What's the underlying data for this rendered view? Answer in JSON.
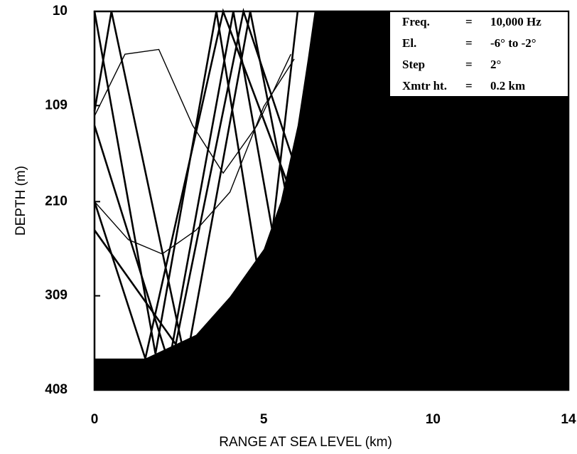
{
  "chart_data": {
    "type": "line",
    "x_label": "RANGE AT SEA LEVEL (km)",
    "y_label": "DEPTH (m)",
    "xlim": [
      0,
      14
    ],
    "xticks": [
      0,
      5,
      10,
      14
    ],
    "ylim": [
      10,
      408
    ],
    "yticks": [
      10,
      109,
      210,
      309,
      408
    ],
    "y_inverted": true,
    "color": "#000000",
    "shadow_zone": {
      "x": [
        0,
        1.5,
        3,
        4,
        5,
        5.5,
        6,
        6.3,
        6.5
      ],
      "y": [
        375,
        375,
        350,
        310,
        260,
        210,
        130,
        60,
        10
      ]
    },
    "rays": [
      {
        "x": [
          0,
          0.5,
          2.7,
          4.6,
          6.2
        ],
        "y": [
          115,
          10,
          380,
          10,
          300
        ]
      },
      {
        "x": [
          0,
          1.5,
          3.8,
          5.8
        ],
        "y": [
          210,
          375,
          10,
          200
        ]
      },
      {
        "x": [
          0,
          2.2,
          4.1,
          5.4
        ],
        "y": [
          130,
          380,
          10,
          270
        ]
      },
      {
        "x": [
          0,
          1.8,
          3.6,
          5.0,
          6.0
        ],
        "y": [
          10,
          370,
          10,
          320,
          10
        ]
      },
      {
        "x": [
          0,
          2.4,
          4.4,
          5.9
        ],
        "y": [
          240,
          360,
          10,
          170
        ]
      },
      {
        "x": [
          0,
          0.9,
          1.9,
          2.9,
          3.8,
          4.8,
          5.8
        ],
        "y": [
          120,
          55,
          50,
          130,
          180,
          130,
          55
        ],
        "thin": true
      },
      {
        "x": [
          0,
          1,
          2,
          3,
          4,
          5,
          5.9
        ],
        "y": [
          210,
          250,
          265,
          240,
          200,
          110,
          60
        ],
        "thin": true
      }
    ],
    "annotation": {
      "rows": [
        [
          "Freq.",
          "=",
          "10,000 Hz"
        ],
        [
          "El.",
          "=",
          "-6° to -2°"
        ],
        [
          "Step",
          "=",
          "2°"
        ],
        [
          "Xmtr ht.",
          "=",
          "0.2 km"
        ]
      ]
    }
  }
}
